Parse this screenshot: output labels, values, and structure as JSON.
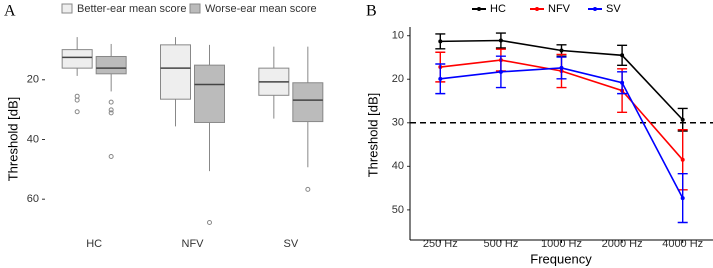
{
  "chart_data": [
    {
      "type": "box",
      "panel_label": "A",
      "y_label": "Threshold [dB]",
      "categories": [
        "HC",
        "NFV",
        "SV"
      ],
      "ylim": [
        73,
        5
      ],
      "yticks": [
        20,
        40,
        60
      ],
      "series": [
        {
          "name": "Better-ear mean score",
          "color": "#eeeeee",
          "boxes": [
            {
              "min": 5.7,
              "q1": 9.9,
              "median": 12.5,
              "q3": 16.1,
              "max": 18.7,
              "outliers": [
                25.5,
                26.8,
                30.7
              ]
            },
            {
              "min": 5.7,
              "q1": 8.3,
              "median": 16.1,
              "q3": 26.5,
              "max": 35.6,
              "outliers": []
            },
            {
              "min": 8.9,
              "q1": 16.1,
              "median": 20.7,
              "q3": 25.2,
              "max": 33,
              "outliers": []
            }
          ]
        },
        {
          "name": "Worse-ear mean score",
          "color": "#bbbbbb",
          "boxes": [
            {
              "min": 8,
              "q1": 12.2,
              "median": 16.1,
              "q3": 18,
              "max": 23.9,
              "outliers": [
                27.5,
                30.1,
                31.1,
                45.7
              ]
            },
            {
              "min": 8.3,
              "q1": 15.1,
              "median": 21.6,
              "q3": 34.3,
              "max": 50.6,
              "outliers": [
                67.8
              ]
            },
            {
              "min": 8.9,
              "q1": 21,
              "median": 26.8,
              "q3": 34,
              "max": 49.3,
              "outliers": [
                56.7
              ]
            }
          ]
        }
      ]
    },
    {
      "type": "line",
      "panel_label": "B",
      "y_label": "Threshold [dB]",
      "x_label": "Frequency",
      "categories": [
        "250 Hz",
        "500 Hz",
        "1000 Hz",
        "2000 Hz",
        "4000 Hz"
      ],
      "ylim": [
        56,
        8
      ],
      "yticks": [
        10,
        20,
        30,
        40,
        50
      ],
      "reference_line": 30,
      "series": [
        {
          "name": "HC",
          "color": "#000000",
          "values": [
            11.3,
            11.1,
            13.4,
            14.5,
            29.3
          ],
          "errors": [
            1.7,
            1.7,
            1.3,
            2.3,
            2.6
          ]
        },
        {
          "name": "NFV",
          "color": "#ff0000",
          "values": [
            17.2,
            15.6,
            18.1,
            22.6,
            38.5
          ],
          "errors": [
            3.4,
            2.5,
            3.8,
            5,
            6.9
          ]
        },
        {
          "name": "SV",
          "color": "#0000ff",
          "values": [
            19.9,
            18.3,
            17.4,
            20.8,
            47.3
          ],
          "errors": [
            3.4,
            3.6,
            2.5,
            2.5,
            5.6
          ]
        }
      ]
    }
  ]
}
